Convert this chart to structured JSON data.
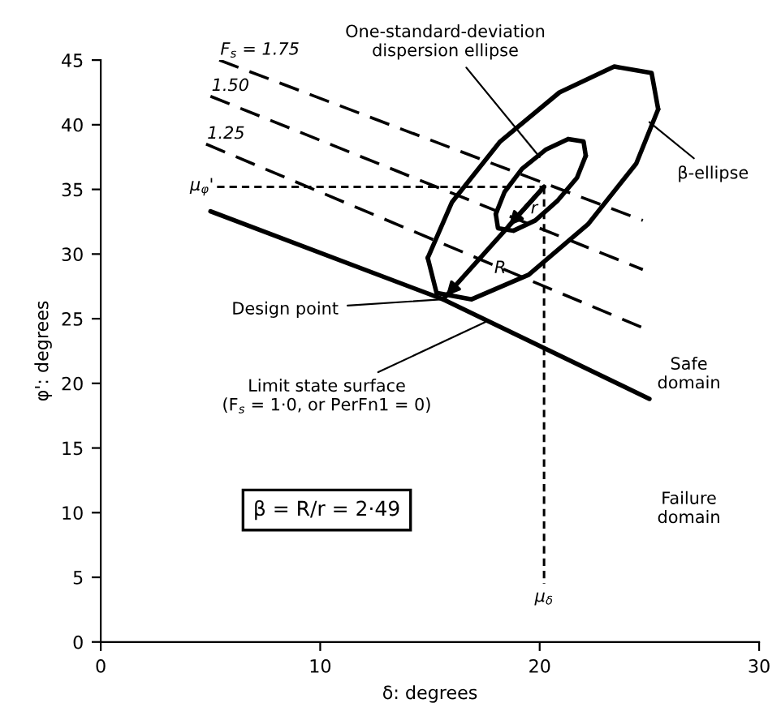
{
  "chart_data": {
    "type": "line",
    "xlabel": "δ: degrees",
    "ylabel": "φ': degrees",
    "xlim": [
      0,
      30
    ],
    "xticks": [
      0,
      10,
      20,
      30
    ],
    "ylim": [
      0,
      45
    ],
    "yticks": [
      0,
      5,
      10,
      15,
      20,
      25,
      30,
      35,
      40,
      45
    ],
    "grid": false,
    "legend": false,
    "series": [
      {
        "name": "F$_{s}$ = 1.75",
        "color": "#000000",
        "line_style": "dashed",
        "x": [
          5.4,
          24.7
        ],
        "values": [
          45.0,
          32.6
        ]
      },
      {
        "name": "1.50",
        "color": "#000000",
        "line_style": "dashed",
        "x": [
          5.0,
          24.7
        ],
        "values": [
          42.2,
          28.8
        ]
      },
      {
        "name": "1.25",
        "color": "#000000",
        "line_style": "dashed",
        "x": [
          4.8,
          24.7
        ],
        "values": [
          38.5,
          24.3
        ]
      },
      {
        "color": "#000000",
        "line_style": "solid",
        "x": [
          5.0,
          15.6,
          25.0
        ],
        "values": [
          33.3,
          26.5,
          18.8
        ]
      },
      {
        "name": "μ$_{φ}$'",
        "color": "#000000",
        "line_style": "dotted",
        "x": [
          5.3,
          20.2
        ],
        "values": [
          35.2,
          35.2
        ]
      },
      {
        "name": "μ$_{δ}$",
        "color": "#000000",
        "line_style": "dotted",
        "x": [
          20.2,
          20.2
        ],
        "values": [
          35.2,
          4.5
        ]
      },
      {
        "color": "#000000",
        "line_style": "solid",
        "x": [
          14.9,
          16.0,
          18.2,
          20.9,
          23.4,
          25.1,
          25.4
        ],
        "values": [
          29.7,
          34.0,
          38.7,
          42.5,
          44.5,
          44.0,
          41.2
        ]
      },
      {
        "color": "#000000",
        "line_style": "solid",
        "x": [
          25.4,
          24.4,
          22.2,
          19.5,
          16.9,
          15.3,
          14.9
        ],
        "values": [
          41.2,
          37.0,
          32.3,
          28.4,
          26.5,
          27.0,
          29.7
        ]
      },
      {
        "color": "#000000",
        "line_style": "solid",
        "x": [
          18.0,
          18.4,
          19.2,
          20.3,
          21.3,
          22.0,
          22.1
        ],
        "values": [
          33.1,
          34.8,
          36.6,
          38.1,
          38.9,
          38.7,
          37.6
        ]
      },
      {
        "color": "#000000",
        "line_style": "solid",
        "x": [
          22.1,
          21.7,
          20.8,
          19.8,
          18.8,
          18.1,
          18.0
        ],
        "values": [
          37.6,
          35.9,
          34.1,
          32.6,
          31.8,
          32.0,
          33.1
        ]
      },
      {
        "color": "#000000",
        "line_style": "solid",
        "x": [
          20.2,
          15.6
        ],
        "values": [
          35.2,
          26.5
        ]
      },
      {
        "color": "#000000",
        "line_style": "solid",
        "x": [
          20.2,
          18.6
        ],
        "values": [
          35.2,
          32.2
        ]
      }
    ],
    "annotations": [
      {
        "text": "One-standard-deviation\ndispersion ellipse",
        "x": 20.0,
        "y": 37.5
      },
      {
        "text": "β-ellipse",
        "x": 25.0,
        "y": 40.2
      },
      {
        "text": "Design point",
        "x": 15.6,
        "y": 26.5
      },
      {
        "text": "Limit state surface\n(F$_{s}$ = 1·0, or PerFn1 = 0)",
        "x": 17.6,
        "y": 24.8
      },
      "R",
      "r",
      "Safe\ndomain",
      "Failure\ndomain",
      "β = R/r = 2·49"
    ]
  }
}
